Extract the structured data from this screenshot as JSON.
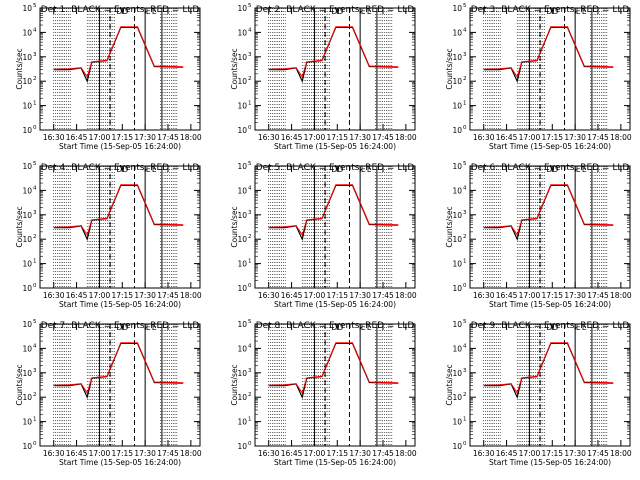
{
  "figure": {
    "ylabel": "Counts/sec",
    "xlabel": "Start Time (15-Sep-05 16:24:00)",
    "colors": {
      "events": "#000000",
      "lld": "#ff0000",
      "background": "#ffffff"
    },
    "markers": [
      "D",
      "D",
      "E",
      "E"
    ]
  },
  "chart_data": [
    {
      "type": "line",
      "title": "Det 1: BLACK = Events, RED = LLD",
      "xlabel": "Start Time (15-Sep-05 16:24:00)",
      "ylabel": "Counts/sec",
      "x_ticks": [
        "16:30",
        "16:45",
        "17:00",
        "17:15",
        "17:30",
        "17:45",
        "18:00"
      ],
      "y_ticks": [
        "10",
        "10",
        "10",
        "10",
        "10",
        "10"
      ],
      "y_exponents": [
        "0",
        "1",
        "2",
        "3",
        "4",
        "5"
      ],
      "ylim": [
        1,
        100000
      ],
      "yscale": "log",
      "series": [
        {
          "name": "Events",
          "color": "#000000",
          "x_min": [
            0,
            10,
            18,
            22,
            25,
            35,
            44,
            55,
            66,
            85
          ],
          "y": [
            300,
            300,
            350,
            100,
            600,
            700,
            16000,
            16000,
            400,
            380
          ]
        },
        {
          "name": "LLD",
          "color": "#ff0000",
          "x_min": [
            0,
            10,
            18,
            22,
            25,
            35,
            44,
            55,
            66,
            85
          ],
          "y": [
            310,
            320,
            360,
            150,
            620,
            720,
            17000,
            17000,
            420,
            390
          ]
        }
      ]
    },
    {
      "type": "line",
      "title": "Det 2: BLACK = Events, RED = LLD",
      "xlabel": "Start Time (15-Sep-05 16:24:00)",
      "ylabel": "Counts/sec",
      "x_ticks": [
        "16:30",
        "16:45",
        "17:00",
        "17:15",
        "17:30",
        "17:45",
        "18:00"
      ],
      "y_ticks": [
        "10",
        "10",
        "10",
        "10",
        "10",
        "10"
      ],
      "y_exponents": [
        "0",
        "1",
        "2",
        "3",
        "4",
        "5"
      ],
      "ylim": [
        1,
        100000
      ],
      "yscale": "log",
      "series": [
        {
          "name": "Events",
          "color": "#000000",
          "x_min": [
            0,
            10,
            18,
            22,
            25,
            35,
            44,
            55,
            66,
            85
          ],
          "y": [
            300,
            300,
            350,
            100,
            600,
            700,
            16000,
            16000,
            400,
            380
          ]
        },
        {
          "name": "LLD",
          "color": "#ff0000",
          "x_min": [
            0,
            10,
            18,
            22,
            25,
            35,
            44,
            55,
            66,
            85
          ],
          "y": [
            310,
            320,
            360,
            150,
            620,
            720,
            17000,
            17000,
            420,
            390
          ]
        }
      ]
    },
    {
      "type": "line",
      "title": "Det 3: BLACK = Events, RED = LLD",
      "xlabel": "Start Time (15-Sep-05 16:24:00)",
      "ylabel": "Counts/sec",
      "x_ticks": [
        "16:30",
        "16:45",
        "17:00",
        "17:15",
        "17:30",
        "17:45",
        "18:00"
      ],
      "y_ticks": [
        "10",
        "10",
        "10",
        "10",
        "10",
        "10"
      ],
      "y_exponents": [
        "0",
        "1",
        "2",
        "3",
        "4",
        "5"
      ],
      "ylim": [
        1,
        100000
      ],
      "yscale": "log",
      "series": [
        {
          "name": "Events",
          "color": "#000000",
          "x_min": [
            0,
            10,
            18,
            22,
            25,
            35,
            44,
            55,
            66,
            85
          ],
          "y": [
            300,
            300,
            350,
            100,
            600,
            700,
            16000,
            16000,
            400,
            380
          ]
        },
        {
          "name": "LLD",
          "color": "#ff0000",
          "x_min": [
            0,
            10,
            18,
            22,
            25,
            35,
            44,
            55,
            66,
            85
          ],
          "y": [
            310,
            320,
            360,
            150,
            620,
            720,
            17000,
            17000,
            420,
            390
          ]
        }
      ]
    },
    {
      "type": "line",
      "title": "Det 4: BLACK = Events, RED = LLD",
      "xlabel": "Start Time (15-Sep-05 16:24:00)",
      "ylabel": "Counts/sec",
      "x_ticks": [
        "16:30",
        "16:45",
        "17:00",
        "17:15",
        "17:30",
        "17:45",
        "18:00"
      ],
      "y_ticks": [
        "10",
        "10",
        "10",
        "10",
        "10",
        "10"
      ],
      "y_exponents": [
        "0",
        "1",
        "2",
        "3",
        "4",
        "5"
      ],
      "ylim": [
        1,
        100000
      ],
      "yscale": "log",
      "series": [
        {
          "name": "Events",
          "color": "#000000",
          "x_min": [
            0,
            10,
            18,
            22,
            25,
            35,
            44,
            55,
            66,
            85
          ],
          "y": [
            300,
            300,
            350,
            100,
            600,
            700,
            16000,
            16000,
            400,
            380
          ]
        },
        {
          "name": "LLD",
          "color": "#ff0000",
          "x_min": [
            0,
            10,
            18,
            22,
            25,
            35,
            44,
            55,
            66,
            85
          ],
          "y": [
            310,
            320,
            360,
            150,
            620,
            720,
            17000,
            17000,
            420,
            390
          ]
        }
      ]
    },
    {
      "type": "line",
      "title": "Det 5: BLACK = Events, RED = LLD",
      "xlabel": "Start Time (15-Sep-05 16:24:00)",
      "ylabel": "Counts/sec",
      "x_ticks": [
        "16:30",
        "16:45",
        "17:00",
        "17:15",
        "17:30",
        "17:45",
        "18:00"
      ],
      "y_ticks": [
        "10",
        "10",
        "10",
        "10",
        "10",
        "10"
      ],
      "y_exponents": [
        "0",
        "1",
        "2",
        "3",
        "4",
        "5"
      ],
      "ylim": [
        1,
        100000
      ],
      "yscale": "log",
      "series": [
        {
          "name": "Events",
          "color": "#000000",
          "x_min": [
            0,
            10,
            18,
            22,
            25,
            35,
            44,
            55,
            66,
            85
          ],
          "y": [
            300,
            300,
            350,
            100,
            600,
            700,
            16000,
            16000,
            400,
            380
          ]
        },
        {
          "name": "LLD",
          "color": "#ff0000",
          "x_min": [
            0,
            10,
            18,
            22,
            25,
            35,
            44,
            55,
            66,
            85
          ],
          "y": [
            310,
            320,
            360,
            150,
            620,
            720,
            17000,
            17000,
            420,
            390
          ]
        }
      ]
    },
    {
      "type": "line",
      "title": "Det 6: BLACK = Events, RED = LLD",
      "xlabel": "Start Time (15-Sep-05 16:24:00)",
      "ylabel": "Counts/sec",
      "x_ticks": [
        "16:30",
        "16:45",
        "17:00",
        "17:15",
        "17:30",
        "17:45",
        "18:00"
      ],
      "y_ticks": [
        "10",
        "10",
        "10",
        "10",
        "10",
        "10"
      ],
      "y_exponents": [
        "0",
        "1",
        "2",
        "3",
        "4",
        "5"
      ],
      "ylim": [
        1,
        100000
      ],
      "yscale": "log",
      "series": [
        {
          "name": "Events",
          "color": "#000000",
          "x_min": [
            0,
            10,
            18,
            22,
            25,
            35,
            44,
            55,
            66,
            85
          ],
          "y": [
            300,
            300,
            350,
            100,
            600,
            700,
            16000,
            16000,
            400,
            380
          ]
        },
        {
          "name": "LLD",
          "color": "#ff0000",
          "x_min": [
            0,
            10,
            18,
            22,
            25,
            35,
            44,
            55,
            66,
            85
          ],
          "y": [
            310,
            320,
            360,
            150,
            620,
            720,
            17000,
            17000,
            420,
            390
          ]
        }
      ]
    },
    {
      "type": "line",
      "title": "Det 7: BLACK = Events, RED = LLD",
      "xlabel": "Start Time (15-Sep-05 16:24:00)",
      "ylabel": "Counts/sec",
      "x_ticks": [
        "16:30",
        "16:45",
        "17:00",
        "17:15",
        "17:30",
        "17:45",
        "18:00"
      ],
      "y_ticks": [
        "10",
        "10",
        "10",
        "10",
        "10",
        "10"
      ],
      "y_exponents": [
        "0",
        "1",
        "2",
        "3",
        "4",
        "5"
      ],
      "ylim": [
        1,
        100000
      ],
      "yscale": "log",
      "series": [
        {
          "name": "Events",
          "color": "#000000",
          "x_min": [
            0,
            10,
            18,
            22,
            25,
            35,
            44,
            55,
            66,
            85
          ],
          "y": [
            300,
            300,
            350,
            100,
            600,
            700,
            16000,
            16000,
            400,
            380
          ]
        },
        {
          "name": "LLD",
          "color": "#ff0000",
          "x_min": [
            0,
            10,
            18,
            22,
            25,
            35,
            44,
            55,
            66,
            85
          ],
          "y": [
            310,
            320,
            360,
            150,
            620,
            720,
            17000,
            17000,
            420,
            390
          ]
        }
      ]
    },
    {
      "type": "line",
      "title": "Det 8: BLACK = Events, RED = LLD",
      "xlabel": "Start Time (15-Sep-05 16:24:00)",
      "ylabel": "Counts/sec",
      "x_ticks": [
        "16:30",
        "16:45",
        "17:00",
        "17:15",
        "17:30",
        "17:45",
        "18:00"
      ],
      "y_ticks": [
        "10",
        "10",
        "10",
        "10",
        "10",
        "10"
      ],
      "y_exponents": [
        "0",
        "1",
        "2",
        "3",
        "4",
        "5"
      ],
      "ylim": [
        1,
        100000
      ],
      "yscale": "log",
      "series": [
        {
          "name": "Events",
          "color": "#000000",
          "x_min": [
            0,
            10,
            18,
            22,
            25,
            35,
            44,
            55,
            66,
            85
          ],
          "y": [
            300,
            300,
            350,
            100,
            600,
            700,
            16000,
            16000,
            400,
            380
          ]
        },
        {
          "name": "LLD",
          "color": "#ff0000",
          "x_min": [
            0,
            10,
            18,
            22,
            25,
            35,
            44,
            55,
            66,
            85
          ],
          "y": [
            310,
            320,
            360,
            150,
            620,
            720,
            17000,
            17000,
            420,
            390
          ]
        }
      ]
    },
    {
      "type": "line",
      "title": "Det 9: BLACK = Events, RED = LLD",
      "xlabel": "Start Time (15-Sep-05 16:24:00)",
      "ylabel": "Counts/sec",
      "x_ticks": [
        "16:30",
        "16:45",
        "17:00",
        "17:15",
        "17:30",
        "17:45",
        "18:00"
      ],
      "y_ticks": [
        "10",
        "10",
        "10",
        "10",
        "10",
        "10"
      ],
      "y_exponents": [
        "0",
        "1",
        "2",
        "3",
        "4",
        "5"
      ],
      "ylim": [
        1,
        100000
      ],
      "yscale": "log",
      "series": [
        {
          "name": "Events",
          "color": "#000000",
          "x_min": [
            0,
            10,
            18,
            22,
            25,
            35,
            44,
            55,
            66,
            85
          ],
          "y": [
            300,
            300,
            350,
            100,
            600,
            700,
            16000,
            16000,
            400,
            380
          ]
        },
        {
          "name": "LLD",
          "color": "#ff0000",
          "x_min": [
            0,
            10,
            18,
            22,
            25,
            35,
            44,
            55,
            66,
            85
          ],
          "y": [
            310,
            320,
            360,
            150,
            620,
            720,
            17000,
            17000,
            420,
            390
          ]
        }
      ]
    }
  ]
}
